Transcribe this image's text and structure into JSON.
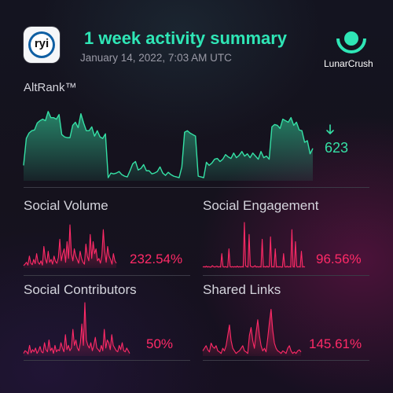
{
  "header": {
    "app_icon_text": "ryi",
    "title": "1 week activity summary",
    "timestamp": "January 14, 2022, 7:03 AM UTC",
    "brand": "LunarCrush"
  },
  "colors": {
    "title": "#2fe6b6",
    "altrank": "#35e0a5",
    "social": "#ff2a67",
    "background": "#100d18"
  },
  "icons": {
    "app": "ryi-app-icon",
    "brand": "lunarcrush-logo",
    "trend": "down-arrow-icon"
  },
  "altrank": {
    "label": "AltRank™",
    "value": "623"
  },
  "metrics": {
    "social_volume": {
      "label": "Social Volume",
      "value": "232.54%"
    },
    "social_engagement": {
      "label": "Social Engagement",
      "value": "96.56%"
    },
    "social_contributors": {
      "label": "Social Contributors",
      "value": "50%"
    },
    "shared_links": {
      "label": "Shared Links",
      "value": "145.61%"
    }
  },
  "chart_data": [
    {
      "id": "altrank",
      "type": "area",
      "title": "AltRank™",
      "ylim": [
        0,
        100
      ],
      "values": [
        20,
        55,
        62,
        65,
        66,
        75,
        78,
        80,
        78,
        90,
        82,
        82,
        80,
        86,
        60,
        57,
        56,
        56,
        72,
        76,
        69,
        87,
        75,
        65,
        65,
        70,
        58,
        65,
        57,
        55,
        61,
        4,
        10,
        9,
        10,
        12,
        8,
        6,
        5,
        13,
        22,
        25,
        14,
        16,
        21,
        13,
        13,
        9,
        10,
        12,
        18,
        10,
        7,
        11,
        8,
        6,
        5,
        4,
        18,
        63,
        65,
        62,
        60,
        58,
        6,
        5,
        4,
        24,
        20,
        23,
        28,
        29,
        25,
        28,
        34,
        31,
        29,
        36,
        30,
        33,
        38,
        32,
        35,
        30,
        36,
        32,
        28,
        38,
        30,
        32,
        28,
        70,
        73,
        72,
        68,
        80,
        78,
        76,
        82,
        72,
        76,
        66,
        65,
        50,
        52,
        35,
        42
      ]
    },
    {
      "id": "social_volume",
      "type": "area",
      "title": "Social Volume",
      "ylim": [
        0,
        100
      ],
      "values": [
        5,
        8,
        12,
        6,
        25,
        10,
        7,
        18,
        9,
        30,
        12,
        8,
        15,
        6,
        45,
        20,
        10,
        35,
        12,
        18,
        8,
        25,
        14,
        10,
        22,
        60,
        15,
        30,
        40,
        12,
        55,
        20,
        90,
        30,
        15,
        40,
        25,
        18,
        10,
        35,
        20,
        12,
        8,
        50,
        25,
        15,
        70,
        20,
        55,
        30,
        40,
        15,
        20,
        10,
        25,
        80,
        35,
        12,
        45,
        25,
        18,
        8,
        30,
        15,
        10
      ]
    },
    {
      "id": "social_engagement",
      "type": "area",
      "title": "Social Engagement",
      "ylim": [
        0,
        100
      ],
      "values": [
        2,
        3,
        2,
        4,
        2,
        3,
        2,
        2,
        5,
        3,
        2,
        3,
        4,
        2,
        3,
        2,
        30,
        3,
        2,
        3,
        2,
        2,
        40,
        3,
        2,
        3,
        2,
        3,
        2,
        4,
        2,
        3,
        2,
        3,
        2,
        95,
        5,
        3,
        2,
        70,
        4,
        3,
        2,
        3,
        5,
        2,
        3,
        2,
        3,
        2,
        60,
        2,
        3,
        2,
        4,
        2,
        3,
        65,
        2,
        3,
        2,
        40,
        2,
        3,
        2,
        3,
        2,
        2,
        30,
        3,
        2,
        4,
        2,
        3,
        2,
        80,
        3,
        2,
        55,
        4,
        2,
        3,
        2,
        35,
        2,
        3,
        2
      ]
    },
    {
      "id": "social_contributors",
      "type": "area",
      "title": "Social Contributors",
      "ylim": [
        0,
        100
      ],
      "values": [
        5,
        10,
        8,
        4,
        20,
        6,
        12,
        8,
        15,
        5,
        10,
        18,
        8,
        6,
        25,
        12,
        8,
        30,
        10,
        15,
        5,
        20,
        8,
        12,
        10,
        25,
        15,
        8,
        40,
        12,
        20,
        10,
        15,
        50,
        20,
        30,
        15,
        10,
        25,
        60,
        20,
        100,
        30,
        20,
        15,
        25,
        10,
        20,
        35,
        15,
        12,
        8,
        20,
        10,
        50,
        15,
        30,
        25,
        12,
        40,
        20,
        15,
        10,
        8,
        20,
        12,
        25,
        10,
        8,
        15,
        10,
        5
      ]
    },
    {
      "id": "shared_links",
      "type": "area",
      "title": "Shared Links",
      "ylim": [
        0,
        100
      ],
      "values": [
        10,
        15,
        20,
        12,
        8,
        25,
        18,
        15,
        20,
        10,
        8,
        5,
        15,
        10,
        20,
        40,
        60,
        30,
        15,
        10,
        5,
        8,
        10,
        15,
        20,
        10,
        8,
        5,
        40,
        55,
        30,
        15,
        45,
        70,
        40,
        20,
        10,
        15,
        8,
        35,
        65,
        90,
        50,
        25,
        15,
        10,
        8,
        5,
        10,
        8,
        5,
        15,
        20,
        10,
        5,
        8,
        5,
        10,
        12,
        8
      ]
    }
  ]
}
